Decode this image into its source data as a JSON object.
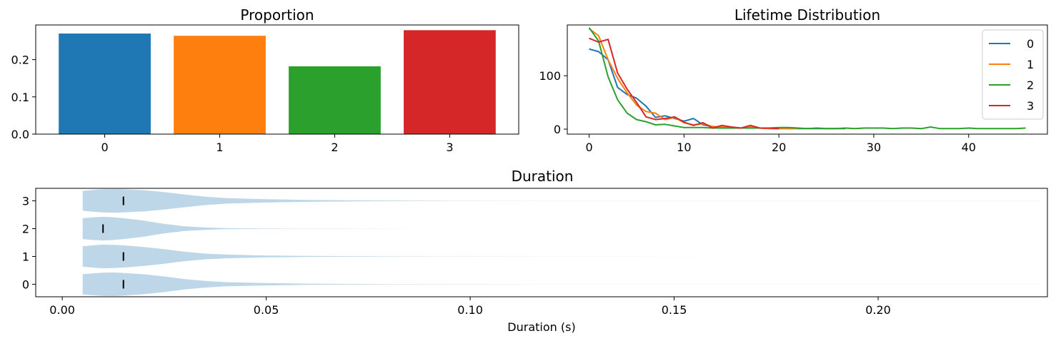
{
  "chart_data": [
    {
      "type": "bar",
      "title": "Proportion",
      "categories": [
        "0",
        "1",
        "2",
        "3"
      ],
      "values": [
        0.27,
        0.264,
        0.182,
        0.279
      ],
      "colors": [
        "#1f77b4",
        "#ff7f0e",
        "#2ca02c",
        "#d62728"
      ],
      "ylim": [
        0,
        0.293
      ],
      "yticks": [
        0.0,
        0.1,
        0.2
      ],
      "ytick_labels": [
        "0.0",
        "0.1",
        "0.2"
      ],
      "xlabel": "",
      "ylabel": "",
      "grid": false
    },
    {
      "type": "line",
      "title": "Lifetime Distribution",
      "xlim": [
        -2.3,
        48.3
      ],
      "ylim": [
        -9.3,
        195
      ],
      "xticks": [
        0,
        10,
        20,
        30,
        40
      ],
      "xtick_labels": [
        "0",
        "10",
        "20",
        "30",
        "40"
      ],
      "yticks": [
        0,
        100
      ],
      "ytick_labels": [
        "0",
        "100"
      ],
      "legend": "top-right",
      "grid": false,
      "series": [
        {
          "name": "0",
          "color": "#1f77b4",
          "x": [
            0,
            1,
            2,
            3,
            4,
            5,
            6,
            7,
            8,
            9,
            10,
            11,
            12,
            13,
            14,
            15,
            16,
            17,
            18,
            19,
            20,
            21,
            22,
            23,
            24,
            25,
            26,
            27
          ],
          "values": [
            150,
            145,
            130,
            78,
            65,
            58,
            43,
            22,
            25,
            20,
            15,
            20,
            8,
            5,
            3,
            3,
            2,
            2,
            2,
            1,
            1,
            1,
            1,
            1,
            1,
            1,
            1,
            1
          ]
        },
        {
          "name": "1",
          "color": "#ff7f0e",
          "x": [
            0,
            1,
            2,
            3,
            4,
            5,
            6,
            7,
            8,
            9,
            10,
            11,
            12,
            13,
            14,
            15,
            16,
            17,
            18,
            19,
            20,
            21,
            22
          ],
          "values": [
            188,
            175,
            130,
            95,
            68,
            45,
            33,
            30,
            18,
            22,
            12,
            8,
            10,
            5,
            4,
            3,
            2,
            4,
            2,
            1,
            1,
            1,
            1
          ]
        },
        {
          "name": "2",
          "color": "#2ca02c",
          "x": [
            0,
            1,
            2,
            3,
            4,
            5,
            6,
            7,
            8,
            9,
            10,
            11,
            12,
            13,
            14,
            15,
            16,
            17,
            18,
            19,
            20,
            21,
            22,
            23,
            24,
            25,
            26,
            27,
            28,
            29,
            30,
            31,
            32,
            33,
            34,
            35,
            36,
            37,
            38,
            39,
            40,
            41,
            42,
            43,
            44,
            45,
            46
          ],
          "values": [
            190,
            165,
            98,
            55,
            30,
            18,
            14,
            8,
            9,
            6,
            3,
            3,
            3,
            2,
            2,
            2,
            2,
            2,
            2,
            2,
            3,
            3,
            2,
            1,
            2,
            1,
            1,
            2,
            1,
            2,
            2,
            2,
            1,
            2,
            2,
            1,
            4,
            1,
            1,
            1,
            2,
            1,
            1,
            1,
            1,
            1,
            2
          ]
        },
        {
          "name": "3",
          "color": "#d62728",
          "x": [
            0,
            1,
            2,
            3,
            4,
            5,
            6,
            7,
            8,
            9,
            10,
            11,
            12,
            13,
            14,
            15,
            16,
            17,
            18,
            19,
            20
          ],
          "values": [
            170,
            163,
            168,
            105,
            75,
            50,
            23,
            18,
            20,
            23,
            13,
            7,
            12,
            2,
            7,
            4,
            2,
            7,
            2,
            2,
            1
          ]
        }
      ]
    },
    {
      "type": "violin",
      "title": "Duration",
      "xlabel": "Duration (s)",
      "ylabel": "",
      "categories": [
        "0",
        "1",
        "2",
        "3"
      ],
      "xlim": [
        -0.0065,
        0.2415
      ],
      "ylim": [
        -0.45,
        3.45
      ],
      "xticks": [
        0.0,
        0.05,
        0.1,
        0.15,
        0.2
      ],
      "xtick_labels": [
        "0.00",
        "0.05",
        "0.10",
        "0.15",
        "0.20"
      ],
      "color": "#bdd6e8",
      "medians": [
        0.015,
        0.015,
        0.01,
        0.015
      ],
      "density_points": [
        0.005,
        0.0075,
        0.01,
        0.0125,
        0.015,
        0.02,
        0.025,
        0.03,
        0.035,
        0.04,
        0.05,
        0.06,
        0.07,
        0.08,
        0.1,
        0.14,
        0.18,
        0.22,
        0.24
      ],
      "violins": [
        {
          "widths": [
            0.43,
            0.46,
            0.49,
            0.5,
            0.48,
            0.42,
            0.33,
            0.22,
            0.14,
            0.09,
            0.05,
            0.025,
            0.014,
            0.008,
            0.0035,
            0.0015,
            0.001,
            0.0008,
            0.0005
          ]
        },
        {
          "widths": [
            0.43,
            0.47,
            0.5,
            0.49,
            0.47,
            0.4,
            0.31,
            0.2,
            0.12,
            0.08,
            0.04,
            0.02,
            0.012,
            0.007,
            0.003,
            0.0015,
            0.001,
            0.0008,
            0.0005
          ]
        },
        {
          "widths": [
            0.44,
            0.48,
            0.5,
            0.48,
            0.44,
            0.34,
            0.2,
            0.1,
            0.05,
            0.025,
            0.01,
            0.004,
            0.002,
            0.0012,
            0.0009,
            0.0007,
            0.0006,
            0.0005,
            0.0003
          ]
        },
        {
          "widths": [
            0.42,
            0.46,
            0.49,
            0.5,
            0.49,
            0.45,
            0.37,
            0.27,
            0.18,
            0.12,
            0.07,
            0.04,
            0.025,
            0.014,
            0.005,
            0.002,
            0.0012,
            0.0008,
            0.0005
          ]
        }
      ]
    }
  ]
}
